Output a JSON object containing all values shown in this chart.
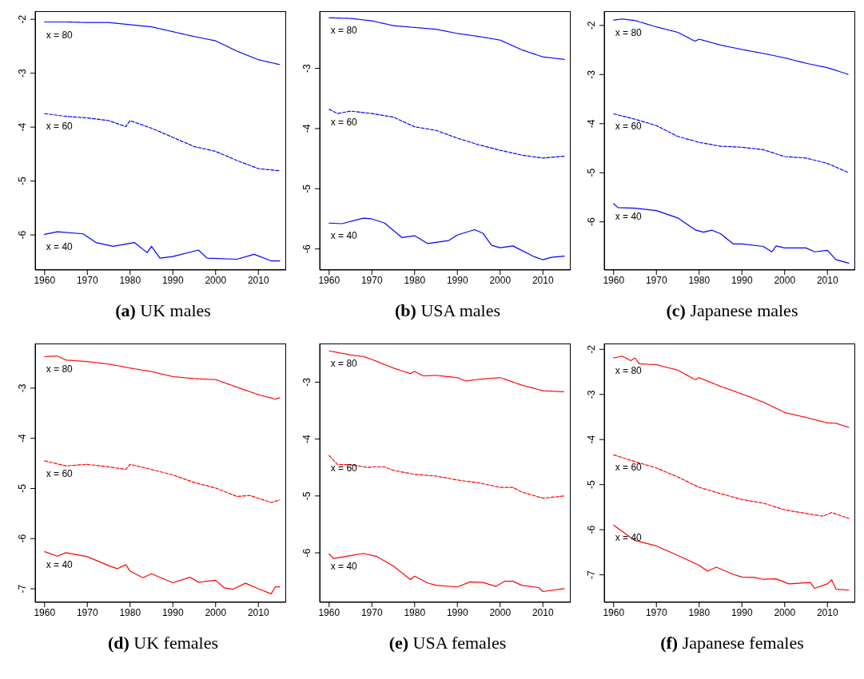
{
  "chart_data": [
    {
      "type": "line",
      "title": "(a) UK males",
      "xlim": [
        1957.8,
        2016.5
      ],
      "xticks": [
        1960,
        1970,
        1980,
        1990,
        2000,
        2010
      ],
      "ylim": [
        -6.65,
        -1.85
      ],
      "yticks": [
        -2,
        -3,
        -4,
        -5,
        -6
      ],
      "legend": false,
      "grid": false,
      "series": [
        {
          "name": "x = 80",
          "color": "#0000ff",
          "line_style": "dotted",
          "x": [
            1960,
            1965,
            1970,
            1975,
            1980,
            1985,
            1990,
            1995,
            2000,
            2005,
            2010,
            2015
          ],
          "values": [
            -2.05,
            -2.05,
            -2.06,
            -2.06,
            -2.1,
            -2.14,
            -2.23,
            -2.32,
            -2.4,
            -2.59,
            -2.75,
            -2.84
          ]
        },
        {
          "name": "x = 60",
          "color": "#0000ff",
          "line_style": "dashed",
          "x": [
            1960,
            1965,
            1970,
            1975,
            1979,
            1980,
            1985,
            1990,
            1995,
            2000,
            2005,
            2010,
            2015
          ],
          "values": [
            -3.75,
            -3.8,
            -3.83,
            -3.88,
            -3.99,
            -3.88,
            -4.02,
            -4.19,
            -4.36,
            -4.45,
            -4.62,
            -4.77,
            -4.81
          ]
        },
        {
          "name": "x = 40",
          "color": "#0000ff",
          "line_style": "solid",
          "x": [
            1960,
            1963,
            1969,
            1972,
            1976,
            1981,
            1984,
            1985,
            1987,
            1990,
            1996,
            1998,
            2005,
            2009,
            2013,
            2015
          ],
          "values": [
            -5.99,
            -5.94,
            -5.98,
            -6.14,
            -6.21,
            -6.14,
            -6.33,
            -6.21,
            -6.43,
            -6.4,
            -6.28,
            -6.43,
            -6.45,
            -6.36,
            -6.48,
            -6.48
          ]
        }
      ]
    },
    {
      "type": "line",
      "title": "(b) USA males",
      "xlim": [
        1957.8,
        2016.5
      ],
      "xticks": [
        1960,
        1970,
        1980,
        1990,
        2000,
        2010
      ],
      "ylim": [
        -6.35,
        -2.05
      ],
      "yticks": [
        -3,
        -4,
        -5,
        -6
      ],
      "legend": false,
      "grid": false,
      "series": [
        {
          "name": "x = 80",
          "color": "#0000ff",
          "line_style": "dotted",
          "x": [
            1960,
            1965,
            1970,
            1975,
            1980,
            1985,
            1990,
            1995,
            2000,
            2005,
            2010,
            2015
          ],
          "values": [
            -2.16,
            -2.17,
            -2.21,
            -2.29,
            -2.32,
            -2.35,
            -2.42,
            -2.47,
            -2.53,
            -2.69,
            -2.81,
            -2.85
          ]
        },
        {
          "name": "x = 60",
          "color": "#0000ff",
          "line_style": "dashed",
          "x": [
            1960,
            1962,
            1965,
            1970,
            1975,
            1980,
            1985,
            1990,
            1995,
            2000,
            2005,
            2010,
            2015
          ],
          "values": [
            -3.68,
            -3.75,
            -3.71,
            -3.75,
            -3.81,
            -3.97,
            -4.03,
            -4.16,
            -4.27,
            -4.36,
            -4.44,
            -4.49,
            -4.46
          ]
        },
        {
          "name": "x = 40",
          "color": "#0000ff",
          "line_style": "solid",
          "x": [
            1960,
            1963,
            1968,
            1970,
            1973,
            1977,
            1980,
            1983,
            1988,
            1990,
            1994,
            1996,
            1998,
            2000,
            2003,
            2008,
            2010,
            2012,
            2015
          ],
          "values": [
            -5.57,
            -5.58,
            -5.49,
            -5.5,
            -5.57,
            -5.81,
            -5.78,
            -5.91,
            -5.86,
            -5.77,
            -5.68,
            -5.74,
            -5.94,
            -5.98,
            -5.95,
            -6.13,
            -6.18,
            -6.14,
            -6.12
          ]
        }
      ]
    },
    {
      "type": "line",
      "title": "(c) Japanese males",
      "xlim": [
        1957.8,
        2016.5
      ],
      "xticks": [
        1960,
        1970,
        1980,
        1990,
        2000,
        2010
      ],
      "ylim": [
        -6.98,
        -1.71
      ],
      "yticks": [
        -2,
        -3,
        -4,
        -5,
        -6
      ],
      "legend": false,
      "grid": false,
      "series": [
        {
          "name": "x = 80",
          "color": "#0000ff",
          "line_style": "dotted",
          "x": [
            1960,
            1962,
            1965,
            1970,
            1975,
            1979,
            1980,
            1985,
            1990,
            1995,
            2000,
            2005,
            2010,
            2015
          ],
          "values": [
            -1.89,
            -1.87,
            -1.9,
            -2.03,
            -2.14,
            -2.32,
            -2.28,
            -2.4,
            -2.49,
            -2.57,
            -2.66,
            -2.77,
            -2.86,
            -3.0
          ]
        },
        {
          "name": "x = 60",
          "color": "#0000ff",
          "line_style": "dashed",
          "x": [
            1960,
            1965,
            1970,
            1975,
            1980,
            1985,
            1990,
            1995,
            2000,
            2005,
            2010,
            2015
          ],
          "values": [
            -3.8,
            -3.91,
            -4.04,
            -4.26,
            -4.38,
            -4.46,
            -4.48,
            -4.53,
            -4.67,
            -4.7,
            -4.81,
            -5.0
          ]
        },
        {
          "name": "x = 40",
          "color": "#0000ff",
          "line_style": "solid",
          "x": [
            1960,
            1961,
            1965,
            1970,
            1975,
            1979,
            1981,
            1983,
            1985,
            1988,
            1990,
            1995,
            1997,
            1998,
            2000,
            2005,
            2007,
            2010,
            2012,
            2015
          ],
          "values": [
            -5.63,
            -5.71,
            -5.72,
            -5.77,
            -5.92,
            -6.16,
            -6.21,
            -6.17,
            -6.24,
            -6.45,
            -6.45,
            -6.5,
            -6.61,
            -6.49,
            -6.53,
            -6.53,
            -6.61,
            -6.58,
            -6.77,
            -6.84
          ]
        }
      ]
    },
    {
      "type": "line",
      "title": "(d) UK females",
      "xlim": [
        1957.8,
        2016.5
      ],
      "xticks": [
        1960,
        1970,
        1980,
        1990,
        2000,
        2010
      ],
      "ylim": [
        -7.27,
        -2.11
      ],
      "yticks": [
        -3,
        -4,
        -5,
        -6,
        -7
      ],
      "legend": false,
      "grid": false,
      "series": [
        {
          "name": "x = 80",
          "color": "#ff0000",
          "line_style": "dotted",
          "x": [
            1960,
            1963,
            1965,
            1970,
            1975,
            1980,
            1985,
            1990,
            1995,
            2000,
            2005,
            2010,
            2014,
            2015
          ],
          "values": [
            -2.37,
            -2.36,
            -2.44,
            -2.47,
            -2.52,
            -2.6,
            -2.67,
            -2.77,
            -2.81,
            -2.83,
            -2.98,
            -3.13,
            -3.22,
            -3.19
          ]
        },
        {
          "name": "x = 60",
          "color": "#ff0000",
          "line_style": "dashed",
          "x": [
            1960,
            1965,
            1970,
            1975,
            1979,
            1980,
            1985,
            1990,
            1995,
            2000,
            2005,
            2008,
            2013,
            2015
          ],
          "values": [
            -4.45,
            -4.55,
            -4.52,
            -4.57,
            -4.62,
            -4.52,
            -4.62,
            -4.73,
            -4.88,
            -4.99,
            -5.16,
            -5.14,
            -5.28,
            -5.23
          ]
        },
        {
          "name": "x = 40",
          "color": "#ff0000",
          "line_style": "solid",
          "x": [
            1960,
            1963,
            1965,
            1970,
            1975,
            1977,
            1979,
            1980,
            1983,
            1985,
            1990,
            1994,
            1996,
            2000,
            2002,
            2004,
            2007,
            2010,
            2013,
            2014,
            2015
          ],
          "values": [
            -6.26,
            -6.35,
            -6.28,
            -6.36,
            -6.54,
            -6.6,
            -6.52,
            -6.65,
            -6.78,
            -6.7,
            -6.88,
            -6.77,
            -6.87,
            -6.83,
            -6.98,
            -7.01,
            -6.89,
            -7.0,
            -7.1,
            -6.96,
            -6.96
          ]
        }
      ]
    },
    {
      "type": "line",
      "title": "(e) USA females",
      "xlim": [
        1957.8,
        2016.5
      ],
      "xticks": [
        1960,
        1970,
        1980,
        1990,
        2000,
        2010
      ],
      "ylim": [
        -6.87,
        -2.32
      ],
      "yticks": [
        -3,
        -4,
        -5,
        -6
      ],
      "legend": false,
      "grid": false,
      "series": [
        {
          "name": "x = 80",
          "color": "#ff0000",
          "line_style": "dotted",
          "x": [
            1960,
            1965,
            1968,
            1970,
            1975,
            1979,
            1980,
            1982,
            1985,
            1990,
            1992,
            1995,
            2000,
            2005,
            2010,
            2015
          ],
          "values": [
            -2.45,
            -2.52,
            -2.55,
            -2.6,
            -2.75,
            -2.85,
            -2.81,
            -2.89,
            -2.88,
            -2.92,
            -2.98,
            -2.95,
            -2.92,
            -3.05,
            -3.15,
            -3.17
          ]
        },
        {
          "name": "x = 60",
          "color": "#ff0000",
          "line_style": "dashed",
          "x": [
            1960,
            1962,
            1965,
            1969,
            1970,
            1973,
            1975,
            1980,
            1985,
            1990,
            1995,
            2000,
            2003,
            2005,
            2010,
            2015
          ],
          "values": [
            -4.29,
            -4.45,
            -4.45,
            -4.5,
            -4.49,
            -4.49,
            -4.55,
            -4.62,
            -4.65,
            -4.72,
            -4.77,
            -4.85,
            -4.85,
            -4.93,
            -5.04,
            -5.0
          ]
        },
        {
          "name": "x = 40",
          "color": "#ff0000",
          "line_style": "solid",
          "x": [
            1960,
            1961,
            1965,
            1968,
            1971,
            1975,
            1979,
            1980,
            1983,
            1985,
            1990,
            1993,
            1996,
            1999,
            2001,
            2003,
            2005,
            2009,
            2010,
            2015
          ],
          "values": [
            -6.02,
            -6.1,
            -6.05,
            -6.01,
            -6.06,
            -6.23,
            -6.47,
            -6.41,
            -6.53,
            -6.57,
            -6.6,
            -6.51,
            -6.52,
            -6.59,
            -6.5,
            -6.5,
            -6.57,
            -6.61,
            -6.68,
            -6.63
          ]
        }
      ]
    },
    {
      "type": "line",
      "title": "(f) Japanese females",
      "xlim": [
        1957.8,
        2016.5
      ],
      "xticks": [
        1960,
        1970,
        1980,
        1990,
        2000,
        2010
      ],
      "ylim": [
        -7.61,
        -1.87
      ],
      "yticks": [
        -2,
        -3,
        -4,
        -5,
        -6,
        -7
      ],
      "legend": false,
      "grid": false,
      "series": [
        {
          "name": "x = 80",
          "color": "#ff0000",
          "line_style": "dotted",
          "x": [
            1960,
            1962,
            1964,
            1965,
            1966,
            1970,
            1975,
            1979,
            1980,
            1985,
            1990,
            1995,
            2000,
            2005,
            2010,
            2012,
            2015
          ],
          "values": [
            -2.19,
            -2.15,
            -2.25,
            -2.19,
            -2.32,
            -2.34,
            -2.46,
            -2.67,
            -2.63,
            -2.82,
            -2.99,
            -3.17,
            -3.4,
            -3.51,
            -3.63,
            -3.64,
            -3.73
          ]
        },
        {
          "name": "x = 60",
          "color": "#ff0000",
          "line_style": "dashed",
          "x": [
            1960,
            1965,
            1970,
            1975,
            1980,
            1985,
            1990,
            1995,
            2000,
            2005,
            2009,
            2011,
            2015
          ],
          "values": [
            -4.34,
            -4.49,
            -4.63,
            -4.83,
            -5.06,
            -5.2,
            -5.33,
            -5.41,
            -5.56,
            -5.64,
            -5.7,
            -5.62,
            -5.75
          ]
        },
        {
          "name": "x = 40",
          "color": "#ff0000",
          "line_style": "solid",
          "x": [
            1960,
            1965,
            1970,
            1975,
            1980,
            1982,
            1984,
            1988,
            1990,
            1993,
            1995,
            1998,
            2001,
            2006,
            2007,
            2010,
            2011,
            2012,
            2015
          ],
          "values": [
            -5.9,
            -6.24,
            -6.36,
            -6.57,
            -6.79,
            -6.92,
            -6.83,
            -6.99,
            -7.05,
            -7.06,
            -7.1,
            -7.09,
            -7.2,
            -7.17,
            -7.3,
            -7.2,
            -7.11,
            -7.32,
            -7.34
          ]
        }
      ]
    }
  ]
}
